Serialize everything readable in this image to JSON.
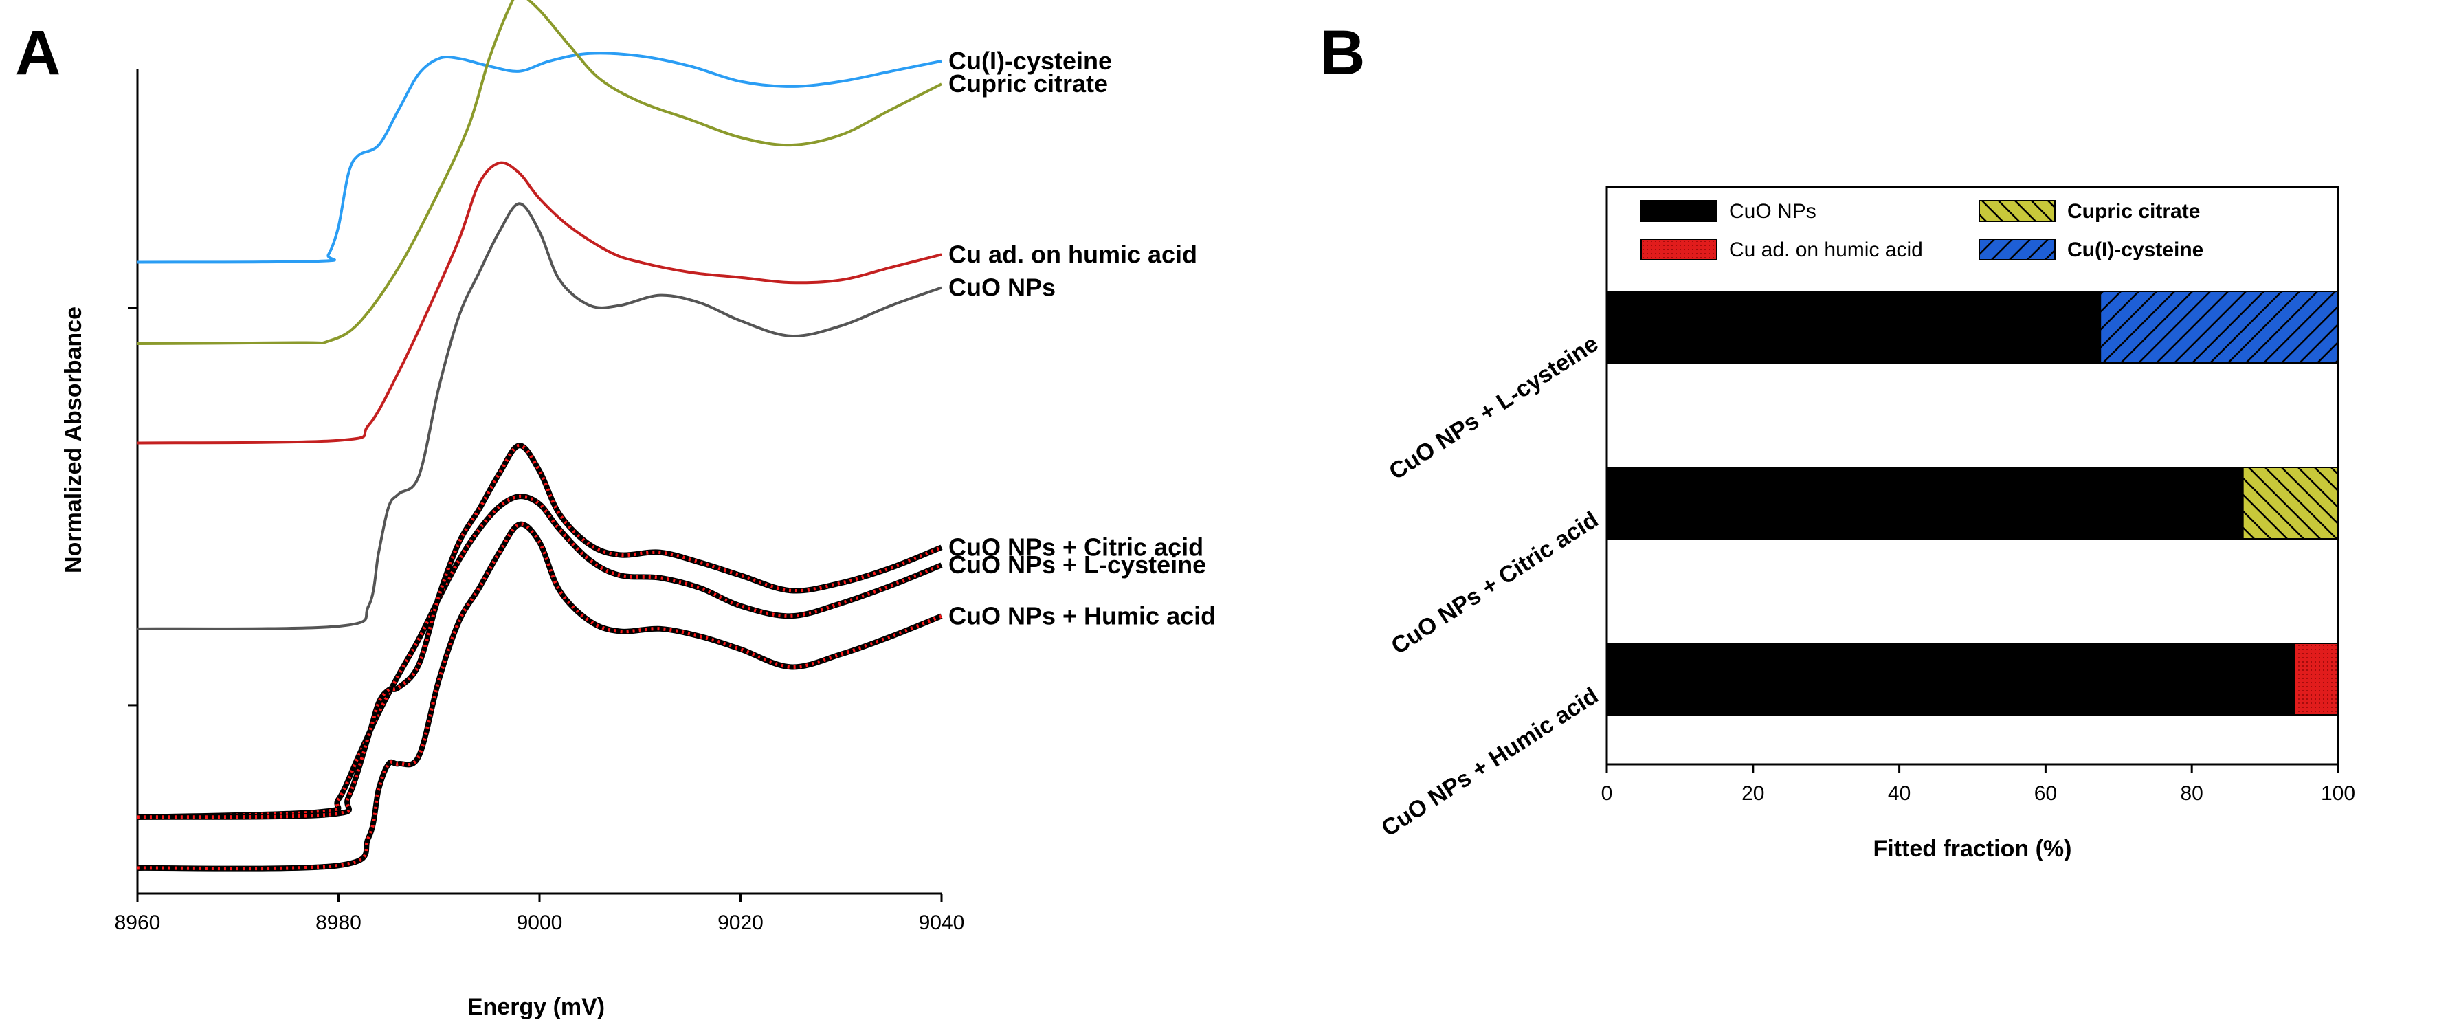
{
  "panels": {
    "a_letter": "A",
    "b_letter": "B"
  },
  "chart_data": [
    {
      "type": "line",
      "title": "",
      "xlabel": "Energy (mV)",
      "ylabel": "Normalized Absorbance",
      "xlim": [
        8960,
        9040
      ],
      "xticks": [
        8960,
        8980,
        9000,
        9020,
        9040
      ],
      "series": [
        {
          "name": "Cu(I)-cysteine",
          "color": "#2a9df4",
          "kind": "reference",
          "baseline": 11.9,
          "x": [
            8960,
            8978,
            8979,
            8980,
            8981,
            8982,
            8984,
            8986,
            8988,
            8990,
            8992,
            8995,
            8998,
            9001,
            9005,
            9010,
            9015,
            9020,
            9025,
            9030,
            9035,
            9040
          ],
          "y": [
            0,
            0.02,
            0.15,
            0.7,
            1.75,
            2.1,
            2.3,
            3.0,
            3.7,
            4.0,
            4.0,
            3.85,
            3.75,
            3.95,
            4.1,
            4.05,
            3.85,
            3.55,
            3.45,
            3.55,
            3.75,
            3.95
          ]
        },
        {
          "name": "Cupric citrate",
          "color": "#8b9a2c",
          "kind": "reference",
          "baseline": 10.3,
          "x": [
            8960,
            8976,
            8979,
            8982,
            8986,
            8990,
            8993,
            8995,
            8997,
            8998,
            9000,
            9003,
            9006,
            9010,
            9015,
            9020,
            9025,
            9030,
            9035,
            9040
          ],
          "y": [
            0,
            0.02,
            0.05,
            0.4,
            1.5,
            3.0,
            4.3,
            5.6,
            6.6,
            6.85,
            6.55,
            5.85,
            5.2,
            4.75,
            4.4,
            4.05,
            3.9,
            4.1,
            4.6,
            5.1
          ]
        },
        {
          "name": "Cu ad. on humic acid",
          "color": "#c42020",
          "kind": "reference",
          "baseline": 8.35,
          "x": [
            8960,
            8980,
            8983,
            8986,
            8989,
            8992,
            8994,
            8996,
            8998,
            9000,
            9003,
            9007,
            9010,
            9015,
            9020,
            9025,
            9030,
            9035,
            9040
          ],
          "y": [
            0,
            0.05,
            0.35,
            1.4,
            2.65,
            4.0,
            5.1,
            5.5,
            5.3,
            4.8,
            4.25,
            3.75,
            3.55,
            3.35,
            3.25,
            3.15,
            3.2,
            3.45,
            3.7
          ]
        },
        {
          "name": "CuO NPs",
          "color": "#555555",
          "kind": "reference",
          "baseline": 4.7,
          "x": [
            8960,
            8980,
            8983,
            8984,
            8985,
            8986,
            8988,
            8990,
            8992,
            8994,
            8996,
            8998,
            9000,
            9002,
            9005,
            9008,
            9012,
            9016,
            9020,
            9025,
            9030,
            9035,
            9040
          ],
          "y": [
            0,
            0.05,
            0.45,
            1.5,
            2.4,
            2.65,
            3.0,
            4.75,
            6.15,
            7.0,
            7.8,
            8.35,
            7.8,
            6.85,
            6.35,
            6.35,
            6.55,
            6.4,
            6.05,
            5.75,
            5.95,
            6.35,
            6.7
          ]
        },
        {
          "name": "CuO NPs + L-cysteine",
          "color": "#000000",
          "kind": "fitted",
          "baseline": 1.0,
          "x": [
            8960,
            8978,
            8980,
            8982,
            8984,
            8986,
            8988,
            8990,
            8992,
            8994,
            8996,
            8998,
            9000,
            9002,
            9005,
            9008,
            9012,
            9016,
            9020,
            9025,
            9030,
            9035,
            9040
          ],
          "y": [
            0,
            0.1,
            0.35,
            1.2,
            2.05,
            2.8,
            3.5,
            4.3,
            5.05,
            5.65,
            6.1,
            6.3,
            6.15,
            5.65,
            5.05,
            4.75,
            4.7,
            4.5,
            4.15,
            3.95,
            4.2,
            4.55,
            4.95
          ]
        },
        {
          "name": "CuO NPs + Citric acid",
          "color": "#000000",
          "kind": "fitted",
          "baseline": 1.0,
          "x": [
            8960,
            8979,
            8981,
            8983,
            8984,
            8985,
            8986,
            8988,
            8990,
            8992,
            8994,
            8996,
            8998,
            9000,
            9002,
            9005,
            9008,
            9012,
            9016,
            9020,
            9025,
            9030,
            9035,
            9040
          ],
          "y": [
            0,
            0.05,
            0.4,
            1.6,
            2.25,
            2.5,
            2.55,
            3.0,
            4.35,
            5.4,
            6.05,
            6.75,
            7.3,
            6.8,
            5.95,
            5.35,
            5.15,
            5.2,
            5.0,
            4.75,
            4.45,
            4.6,
            4.9,
            5.3
          ]
        },
        {
          "name": "CuO NPs + Humic acid",
          "color": "#000000",
          "kind": "fitted",
          "baseline": 0.0,
          "x": [
            8960,
            8980,
            8983,
            8984,
            8985,
            8986,
            8988,
            8990,
            8992,
            8994,
            8996,
            8998,
            9000,
            9002,
            9005,
            9008,
            9012,
            9016,
            9020,
            9025,
            9030,
            9035,
            9040
          ],
          "y": [
            0,
            0.05,
            0.6,
            1.55,
            2.05,
            2.05,
            2.2,
            3.7,
            4.85,
            5.5,
            6.2,
            6.75,
            6.4,
            5.45,
            4.85,
            4.65,
            4.7,
            4.55,
            4.3,
            3.95,
            4.2,
            4.55,
            4.95
          ]
        }
      ]
    },
    {
      "type": "bar",
      "orientation": "horizontal",
      "stacked": true,
      "title": "",
      "xlabel": "Fitted fraction (%)",
      "ylabel": "",
      "xlim": [
        0,
        100
      ],
      "xticks": [
        0,
        20,
        40,
        60,
        80,
        100
      ],
      "categories": [
        "CuO NPs + L-cysteine",
        "CuO NPs + Citric acid",
        "CuO NPs + Humic acid"
      ],
      "series": [
        {
          "name": "CuO NPs",
          "color": "#000000",
          "pattern": "solid",
          "values": [
            67.5,
            87,
            94
          ]
        },
        {
          "name": "Cu ad. on humic acid",
          "color": "#e11c1c",
          "pattern": "dots",
          "values": [
            0,
            0,
            6
          ]
        },
        {
          "name": "Cupric citrate",
          "color": "#c8c83a",
          "pattern": "hatch",
          "values": [
            0,
            13,
            0
          ]
        },
        {
          "name": "Cu(I)-cysteine",
          "color": "#1e5fd6",
          "pattern": "hatch",
          "values": [
            32.5,
            0,
            0
          ]
        }
      ],
      "legend_position": "top"
    }
  ]
}
